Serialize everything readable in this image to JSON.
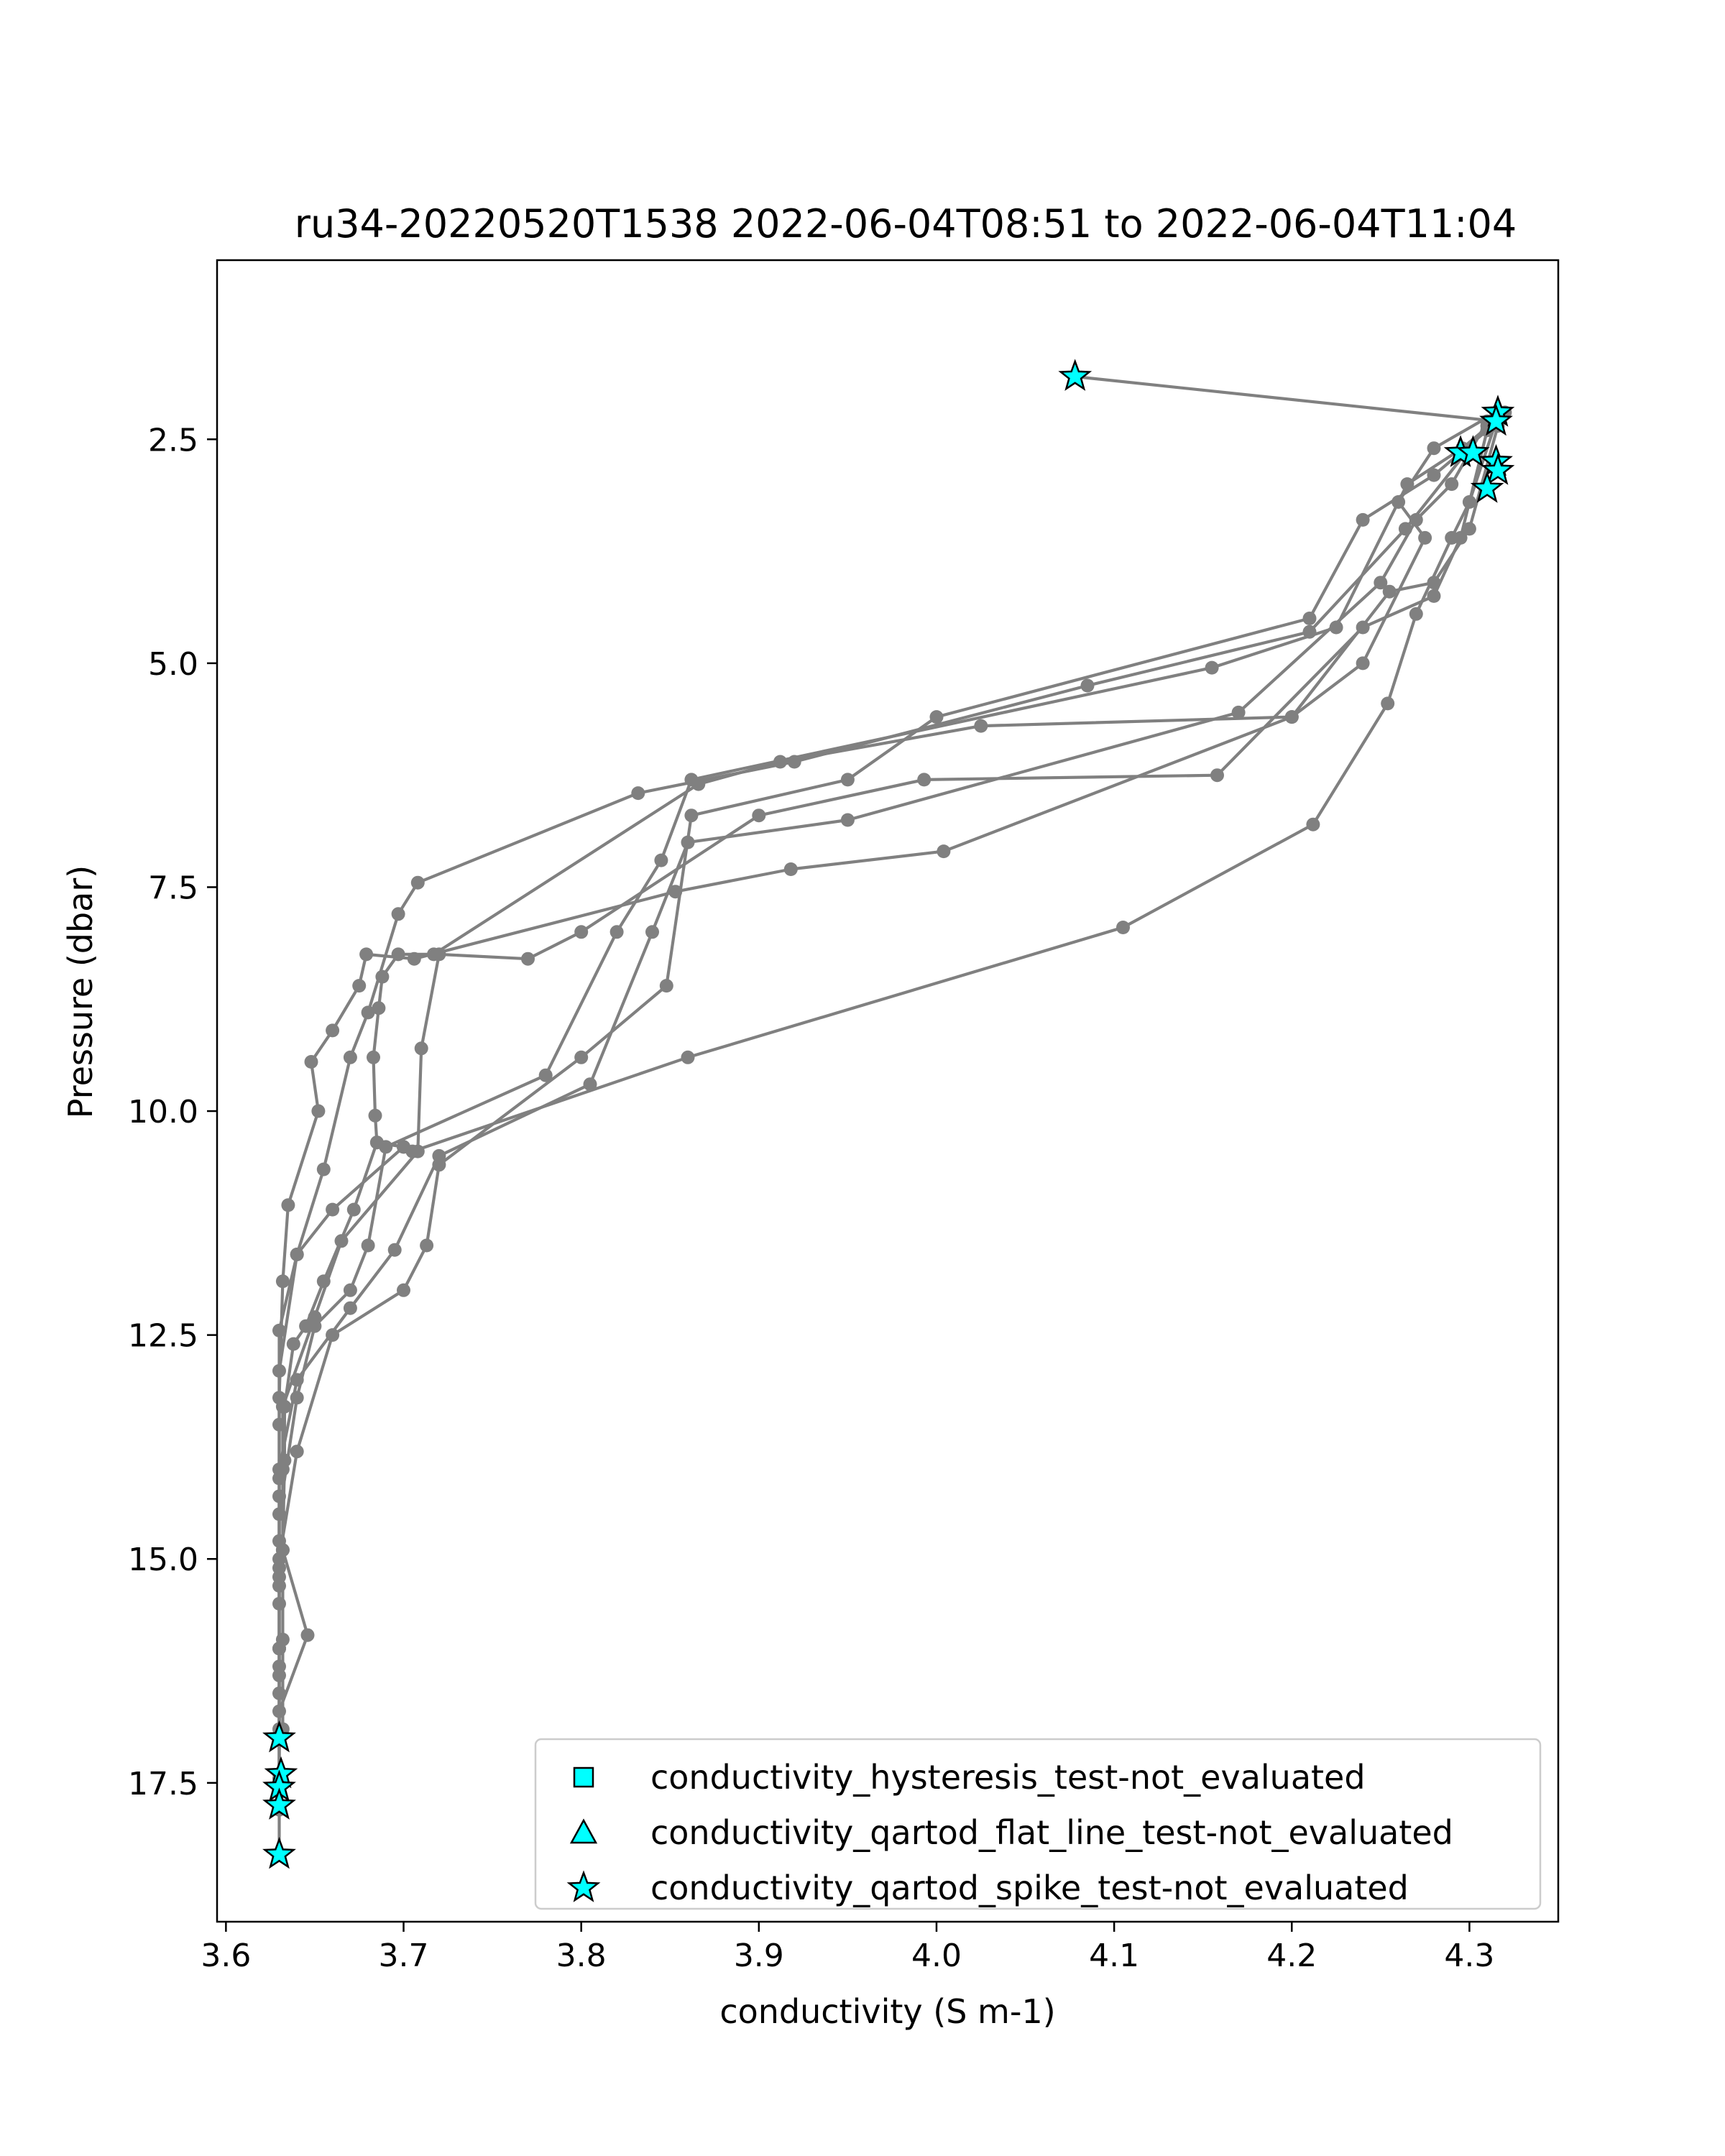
{
  "chart_data": {
    "type": "scatter",
    "title": "ru34-20220520T1538 2022-06-04T08:51 to 2022-06-04T11:04",
    "xlabel": "conductivity (S m-1)",
    "ylabel": "Pressure (dbar)",
    "xlim": [
      3.595,
      4.35
    ],
    "ylim": [
      19.05,
      0.5
    ],
    "y_inverted": true,
    "xticks": [
      3.6,
      3.7,
      3.8,
      3.9,
      4.0,
      4.1,
      4.2,
      4.3
    ],
    "xtick_labels": [
      "3.6",
      "3.7",
      "3.8",
      "3.9",
      "4.0",
      "4.1",
      "4.2",
      "4.3"
    ],
    "yticks": [
      2.5,
      5.0,
      7.5,
      10.0,
      12.5,
      15.0,
      17.5
    ],
    "ytick_labels": [
      "2.5",
      "5.0",
      "7.5",
      "10.0",
      "12.5",
      "15.0",
      "17.5"
    ],
    "grid": false,
    "legend_position": "lower-right",
    "colors": {
      "profile": "#808080",
      "flag_fill": "#00ffff",
      "flag_edge": "#000000"
    },
    "legend": [
      {
        "label": "conductivity_hysteresis_test-not_evaluated",
        "marker": "square"
      },
      {
        "label": "conductivity_qartod_flat_line_test-not_evaluated",
        "marker": "triangle"
      },
      {
        "label": "conductivity_qartod_spike_test-not_evaluated",
        "marker": "star"
      }
    ],
    "series": [
      {
        "points": [
          [
            4.078,
            1.8
          ],
          [
            4.316,
            2.3
          ],
          [
            4.28,
            2.9
          ],
          [
            4.24,
            3.4
          ],
          [
            4.21,
            4.5
          ],
          [
            4.0,
            5.6
          ],
          [
            3.95,
            6.3
          ],
          [
            3.862,
            6.7
          ],
          [
            3.848,
            8.6
          ],
          [
            3.8,
            9.4
          ],
          [
            3.72,
            10.6
          ],
          [
            3.713,
            11.5
          ],
          [
            3.7,
            12.0
          ],
          [
            3.66,
            12.5
          ],
          [
            3.64,
            13.8
          ],
          [
            3.63,
            15.0
          ],
          [
            3.63,
            16.0
          ],
          [
            3.63,
            17.0
          ]
        ]
      },
      {
        "points": [
          [
            4.32,
            2.2
          ],
          [
            4.296,
            2.6
          ],
          [
            4.265,
            3.0
          ],
          [
            4.225,
            4.6
          ],
          [
            4.155,
            5.05
          ],
          [
            3.862,
            6.3
          ],
          [
            3.845,
            7.2
          ],
          [
            3.82,
            8.0
          ],
          [
            3.78,
            9.6
          ],
          [
            3.69,
            10.4
          ],
          [
            3.68,
            11.5
          ],
          [
            3.67,
            12.0
          ],
          [
            3.65,
            12.4
          ],
          [
            3.64,
            13.2
          ],
          [
            3.63,
            14.5
          ],
          [
            3.63,
            16.0
          ],
          [
            3.63,
            17.4
          ]
        ]
      },
      {
        "points": [
          [
            4.31,
            2.3
          ],
          [
            4.29,
            3.0
          ],
          [
            4.27,
            3.4
          ],
          [
            4.25,
            4.1
          ],
          [
            4.17,
            5.55
          ],
          [
            3.95,
            6.75
          ],
          [
            3.86,
            7.0
          ],
          [
            3.84,
            8.0
          ],
          [
            3.805,
            9.7
          ],
          [
            3.72,
            10.5
          ],
          [
            3.695,
            11.55
          ],
          [
            3.67,
            12.2
          ],
          [
            3.64,
            13.0
          ],
          [
            3.63,
            14.0
          ],
          [
            3.63,
            15.2
          ],
          [
            3.63,
            16.3
          ],
          [
            3.63,
            17.6
          ]
        ]
      },
      {
        "points": [
          [
            4.31,
            2.35
          ],
          [
            4.264,
            3.5
          ],
          [
            4.21,
            4.65
          ],
          [
            4.085,
            5.25
          ],
          [
            3.92,
            6.1
          ],
          [
            3.832,
            6.45
          ],
          [
            3.708,
            7.45
          ],
          [
            3.697,
            7.8
          ],
          [
            3.68,
            8.9
          ],
          [
            3.67,
            9.4
          ],
          [
            3.655,
            10.65
          ],
          [
            3.64,
            11.6
          ],
          [
            3.63,
            12.45
          ],
          [
            3.63,
            13.5
          ],
          [
            3.63,
            14.8
          ],
          [
            3.63,
            15.5
          ],
          [
            3.63,
            16.5
          ],
          [
            3.63,
            17.8
          ]
        ]
      },
      {
        "points": [
          [
            4.315,
            2.2
          ],
          [
            4.28,
            2.6
          ],
          [
            4.26,
            3.2
          ],
          [
            4.275,
            3.6
          ],
          [
            4.24,
            5.0
          ],
          [
            4.2,
            5.6
          ],
          [
            4.025,
            5.7
          ],
          [
            3.912,
            6.1
          ],
          [
            3.866,
            6.35
          ],
          [
            3.717,
            8.25
          ],
          [
            3.697,
            8.25
          ],
          [
            3.688,
            8.5
          ],
          [
            3.686,
            8.85
          ],
          [
            3.683,
            9.4
          ],
          [
            3.684,
            10.05
          ],
          [
            3.685,
            10.35
          ],
          [
            3.7,
            10.4
          ],
          [
            3.66,
            11.1
          ],
          [
            3.64,
            11.6
          ],
          [
            3.63,
            12.9
          ],
          [
            3.63,
            14.1
          ],
          [
            3.63,
            15.1
          ],
          [
            3.63,
            16.0
          ],
          [
            3.63,
            16.9
          ],
          [
            3.63,
            18.3
          ]
        ]
      },
      {
        "points": [
          [
            4.316,
            2.35
          ],
          [
            4.3,
            3.5
          ],
          [
            4.28,
            4.1
          ],
          [
            4.255,
            4.2
          ],
          [
            4.2,
            5.6
          ],
          [
            4.004,
            7.1
          ],
          [
            3.918,
            7.3
          ],
          [
            3.853,
            7.55
          ],
          [
            3.706,
            8.3
          ],
          [
            3.679,
            8.25
          ],
          [
            3.675,
            8.6
          ],
          [
            3.66,
            9.1
          ],
          [
            3.648,
            9.45
          ],
          [
            3.652,
            10.0
          ],
          [
            3.635,
            11.05
          ],
          [
            3.632,
            11.9
          ],
          [
            3.63,
            13.2
          ],
          [
            3.63,
            14.3
          ],
          [
            3.63,
            15.3
          ],
          [
            3.63,
            16.2
          ],
          [
            3.63,
            17.0
          ]
        ]
      },
      {
        "points": [
          [
            4.315,
            2.3
          ],
          [
            4.3,
            3.2
          ],
          [
            4.29,
            3.6
          ],
          [
            4.27,
            4.45
          ],
          [
            4.254,
            5.45
          ],
          [
            4.212,
            6.8
          ],
          [
            4.105,
            7.95
          ],
          [
            3.86,
            9.4
          ],
          [
            3.705,
            10.45
          ],
          [
            3.7,
            10.4
          ],
          [
            3.685,
            10.35
          ],
          [
            3.672,
            11.1
          ],
          [
            3.655,
            11.9
          ],
          [
            3.645,
            12.4
          ],
          [
            3.638,
            12.6
          ],
          [
            3.633,
            13.3
          ],
          [
            3.633,
            13.9
          ],
          [
            3.632,
            14.9
          ],
          [
            3.646,
            15.85
          ],
          [
            3.63,
            16.7
          ],
          [
            3.63,
            17.45
          ]
        ]
      },
      {
        "points": [
          [
            4.31,
            2.4
          ],
          [
            4.295,
            3.6
          ],
          [
            4.28,
            4.25
          ],
          [
            4.24,
            4.6
          ],
          [
            4.158,
            6.25
          ],
          [
            3.993,
            6.3
          ],
          [
            3.9,
            6.7
          ],
          [
            3.8,
            8.0
          ],
          [
            3.77,
            8.3
          ],
          [
            3.72,
            8.25
          ],
          [
            3.71,
            9.3
          ],
          [
            3.708,
            10.45
          ],
          [
            3.665,
            11.45
          ],
          [
            3.65,
            12.3
          ],
          [
            3.632,
            13.3
          ],
          [
            3.632,
            14.0
          ],
          [
            3.632,
            14.9
          ],
          [
            3.632,
            15.9
          ],
          [
            3.632,
            16.9
          ]
        ]
      }
    ],
    "flagged_points": [
      [
        4.078,
        1.8
      ],
      [
        4.316,
        2.2
      ],
      [
        4.315,
        2.3
      ],
      [
        4.295,
        2.65
      ],
      [
        4.302,
        2.65
      ],
      [
        4.315,
        2.75
      ],
      [
        4.316,
        2.85
      ],
      [
        4.31,
        3.05
      ],
      [
        3.63,
        17.0
      ],
      [
        3.631,
        17.4
      ],
      [
        3.63,
        17.55
      ],
      [
        3.63,
        17.75
      ],
      [
        3.63,
        18.3
      ]
    ]
  }
}
